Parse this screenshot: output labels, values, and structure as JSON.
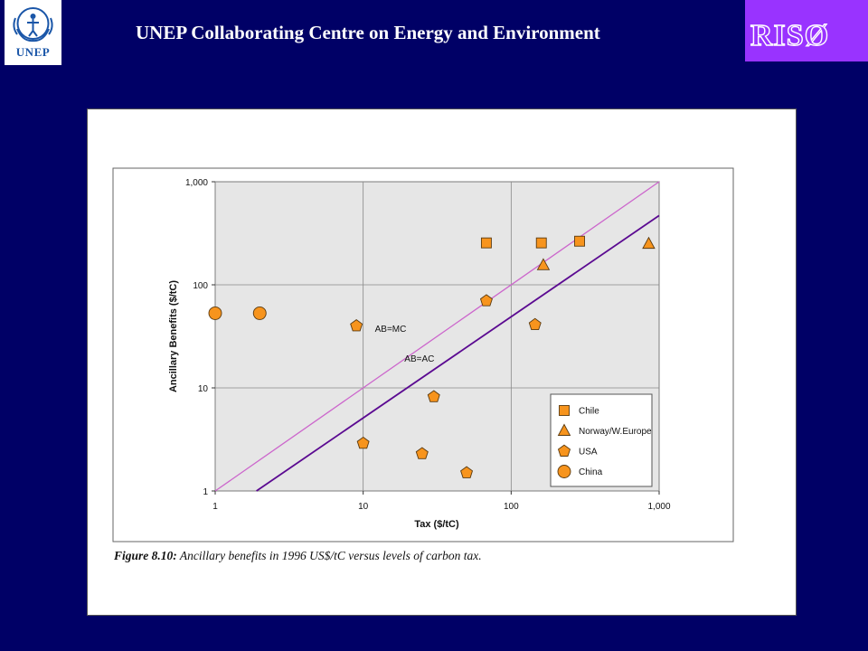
{
  "header": {
    "title": "UNEP Collaborating Centre on Energy and Environment",
    "left_logo_text": "UNEP",
    "right_logo_text": "RISØ"
  },
  "caption": {
    "label": "Figure 8.10:",
    "text": "Ancillary benefits in 1996 US$/tC versus levels of carbon tax."
  },
  "colors": {
    "background": "#000066",
    "marker_fill": "#f7941d",
    "line_ab_mc": "#cc66cc",
    "line_ab_ac": "#5b0a91",
    "plot_bg": "#e6e6e6"
  },
  "chart_data": {
    "type": "scatter",
    "xlabel": "Tax ($/tC)",
    "ylabel": "Ancillary Benefits ($/tC)",
    "xscale": "log",
    "yscale": "log",
    "xlim": [
      1,
      1000
    ],
    "ylim": [
      1,
      1000
    ],
    "xticks": [
      {
        "value": 1,
        "label": "1"
      },
      {
        "value": 10,
        "label": "10"
      },
      {
        "value": 100,
        "label": "100"
      },
      {
        "value": 1000,
        "label": "1,000"
      }
    ],
    "yticks": [
      {
        "value": 1,
        "label": "1"
      },
      {
        "value": 10,
        "label": "10"
      },
      {
        "value": 100,
        "label": "100"
      },
      {
        "value": 1000,
        "label": "1,000"
      }
    ],
    "grid": true,
    "legend_position": "bottom-right",
    "series": [
      {
        "name": "Chile",
        "marker": "square",
        "points": [
          [
            68,
            255
          ],
          [
            160,
            255
          ],
          [
            290,
            265
          ]
        ]
      },
      {
        "name": "Norway/W.Europe",
        "marker": "triangle",
        "points": [
          [
            165,
            155
          ],
          [
            850,
            250
          ]
        ]
      },
      {
        "name": "USA",
        "marker": "pentagon",
        "points": [
          [
            9,
            40
          ],
          [
            10,
            2.9
          ],
          [
            25,
            2.3
          ],
          [
            30,
            8.2
          ],
          [
            50,
            1.5
          ],
          [
            68,
            70
          ],
          [
            145,
            41
          ]
        ]
      },
      {
        "name": "China",
        "marker": "circle",
        "points": [
          [
            1,
            53
          ],
          [
            2,
            53
          ]
        ]
      }
    ],
    "lines": [
      {
        "label": "AB=MC",
        "points": [
          [
            1,
            1
          ],
          [
            1000,
            1000
          ]
        ],
        "label_at": [
          12,
          35
        ]
      },
      {
        "label": "AB=AC",
        "points": [
          [
            1.9,
            1
          ],
          [
            1000,
            470
          ]
        ],
        "label_at": [
          19,
          18
        ]
      }
    ]
  }
}
